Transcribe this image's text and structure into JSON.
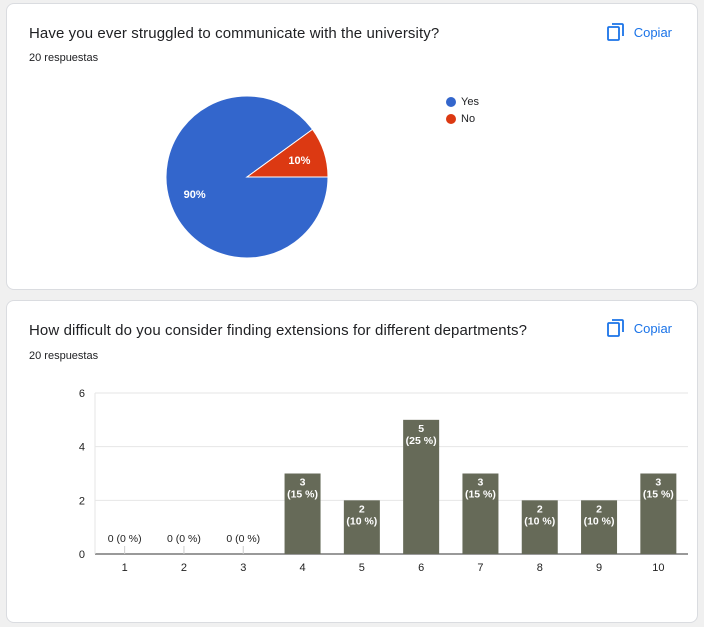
{
  "cards": [
    {
      "question": "Have you ever struggled to communicate with the university?",
      "responses": "20 respuestas",
      "copy_label": "Copiar",
      "copy_icon": "copy-icon"
    },
    {
      "question": "How difficult do you consider finding extensions for different departments?",
      "responses": "20 respuestas",
      "copy_label": "Copiar",
      "copy_icon": "copy-icon"
    }
  ],
  "chart_data": [
    {
      "type": "pie",
      "labels": [
        "Yes",
        "No"
      ],
      "values": [
        90,
        10
      ],
      "slice_labels": [
        "90%",
        "10%"
      ],
      "colors": [
        "#3366cc",
        "#dc3912"
      ],
      "legend": "right"
    },
    {
      "type": "bar",
      "categories": [
        "1",
        "2",
        "3",
        "4",
        "5",
        "6",
        "7",
        "8",
        "9",
        "10"
      ],
      "values": [
        0,
        0,
        0,
        3,
        2,
        5,
        3,
        2,
        2,
        3
      ],
      "data_labels": [
        [
          "0 (0 %)"
        ],
        [
          "0 (0 %)"
        ],
        [
          "0 (0 %)"
        ],
        [
          "3",
          "(15 %)"
        ],
        [
          "2",
          "(10 %)"
        ],
        [
          "5",
          "(25 %)"
        ],
        [
          "3",
          "(15 %)"
        ],
        [
          "2",
          "(10 %)"
        ],
        [
          "2",
          "(10 %)"
        ],
        [
          "3",
          "(15 %)"
        ]
      ],
      "yticks": [
        0,
        2,
        4,
        6
      ],
      "ylim": [
        0,
        6
      ],
      "grid": true,
      "bar_color": "#666a58"
    }
  ]
}
